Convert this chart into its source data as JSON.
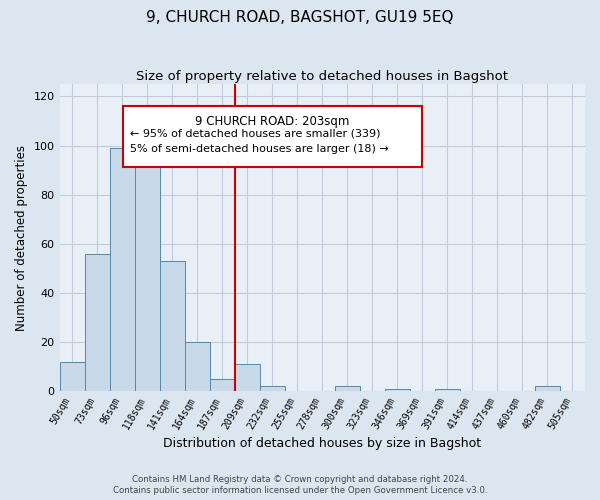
{
  "title": "9, CHURCH ROAD, BAGSHOT, GU19 5EQ",
  "subtitle": "Size of property relative to detached houses in Bagshot",
  "xlabel": "Distribution of detached houses by size in Bagshot",
  "ylabel": "Number of detached properties",
  "bar_labels": [
    "50sqm",
    "73sqm",
    "96sqm",
    "118sqm",
    "141sqm",
    "164sqm",
    "187sqm",
    "209sqm",
    "232sqm",
    "255sqm",
    "278sqm",
    "300sqm",
    "323sqm",
    "346sqm",
    "369sqm",
    "391sqm",
    "414sqm",
    "437sqm",
    "460sqm",
    "482sqm",
    "505sqm"
  ],
  "bar_values": [
    12,
    56,
    99,
    95,
    53,
    20,
    5,
    11,
    2,
    0,
    0,
    2,
    0,
    1,
    0,
    1,
    0,
    0,
    0,
    2,
    0
  ],
  "bar_color": "#c8daea",
  "bar_edge_color": "#5588aa",
  "vline_x": 7.0,
  "vline_color": "#cc0000",
  "ylim": [
    0,
    125
  ],
  "yticks": [
    0,
    20,
    40,
    60,
    80,
    100,
    120
  ],
  "annotation_title": "9 CHURCH ROAD: 203sqm",
  "annotation_line1": "← 95% of detached houses are smaller (339)",
  "annotation_line2": "5% of semi-detached houses are larger (18) →",
  "annotation_box_facecolor": "#ffffff",
  "annotation_box_edgecolor": "#cc0000",
  "footer1": "Contains HM Land Registry data © Crown copyright and database right 2024.",
  "footer2": "Contains public sector information licensed under the Open Government Licence v3.0.",
  "fig_background_color": "#dce6f0",
  "plot_background_color": "#e8eff7",
  "grid_color": "#c0ccdb"
}
